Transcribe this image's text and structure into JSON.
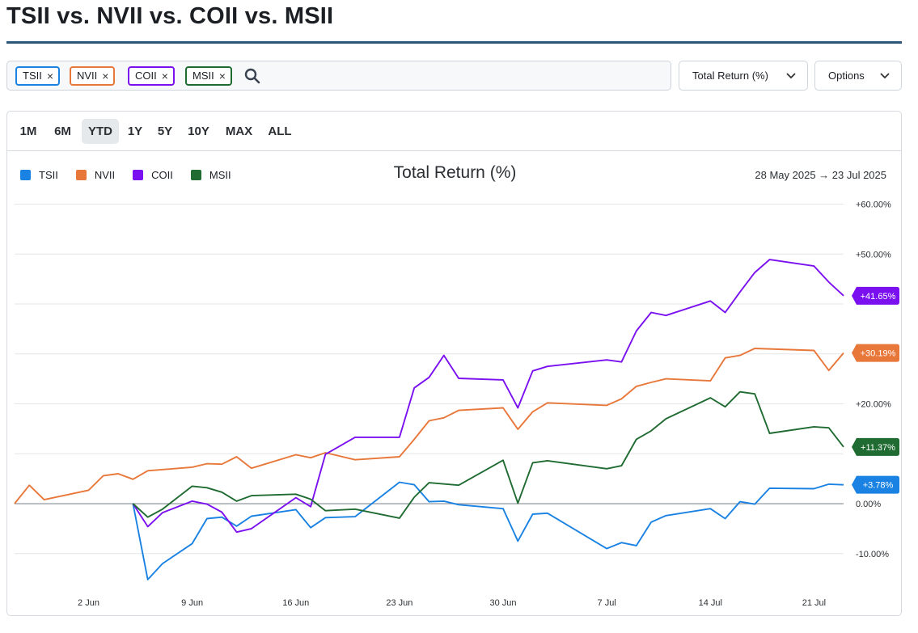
{
  "page": {
    "title": "TSII vs. NVII vs. COII vs. MSII"
  },
  "search": {
    "chips": [
      {
        "label": "TSII",
        "color": "#1a82e2"
      },
      {
        "label": "NVII",
        "color": "#e8773a"
      },
      {
        "label": "COII",
        "color": "#7a10ef"
      },
      {
        "label": "MSII",
        "color": "#1f6b32"
      }
    ],
    "remove_glyph": "×",
    "icon": "search-icon"
  },
  "controls": {
    "metric_label": "Total Return (%)",
    "options_label": "Options",
    "chevron_icon": "chevron-down-icon"
  },
  "ranges": {
    "items": [
      "1M",
      "6M",
      "YTD",
      "1Y",
      "5Y",
      "10Y",
      "MAX",
      "ALL"
    ],
    "selected": "YTD"
  },
  "chart_header": {
    "title": "Total Return (%)",
    "date_range": "28 May 2025  →  23 Jul 2025"
  },
  "chart_data": {
    "type": "line",
    "title": "Total Return (%)",
    "xlabel": "",
    "ylabel": "",
    "x_ticks": [
      {
        "label": "2 Jun",
        "date": "2025-06-02"
      },
      {
        "label": "9 Jun",
        "date": "2025-06-09"
      },
      {
        "label": "16 Jun",
        "date": "2025-06-16"
      },
      {
        "label": "23 Jun",
        "date": "2025-06-23"
      },
      {
        "label": "30 Jun",
        "date": "2025-06-30"
      },
      {
        "label": "7 Jul",
        "date": "2025-07-07"
      },
      {
        "label": "14 Jul",
        "date": "2025-07-14"
      },
      {
        "label": "21 Jul",
        "date": "2025-07-21"
      }
    ],
    "x_range": [
      "2025-05-28",
      "2025-07-23"
    ],
    "y_ticks": [
      {
        "value": 60,
        "label": "+60.00%"
      },
      {
        "value": 50,
        "label": "+50.00%"
      },
      {
        "value": 40,
        "label": ""
      },
      {
        "value": 30,
        "label": ""
      },
      {
        "value": 20,
        "label": "+20.00%"
      },
      {
        "value": 10,
        "label": ""
      },
      {
        "value": 0,
        "label": "0.00%"
      },
      {
        "value": -10,
        "label": "-10.00%"
      }
    ],
    "ylim": [
      -17,
      63
    ],
    "grid": true,
    "legend_position": "top-left",
    "series": [
      {
        "name": "TSII",
        "color": "#1a82e2",
        "end_label": "+3.78%",
        "points": [
          [
            "2025-06-05",
            0
          ],
          [
            "2025-06-06",
            -15.2
          ],
          [
            "2025-06-07",
            -12.0
          ],
          [
            "2025-06-09",
            -8.0
          ],
          [
            "2025-06-10",
            -3.0
          ],
          [
            "2025-06-11",
            -2.7
          ],
          [
            "2025-06-12",
            -4.5
          ],
          [
            "2025-06-13",
            -2.5
          ],
          [
            "2025-06-16",
            -1.2
          ],
          [
            "2025-06-17",
            -4.8
          ],
          [
            "2025-06-18",
            -2.8
          ],
          [
            "2025-06-20",
            -2.6
          ],
          [
            "2025-06-23",
            4.3
          ],
          [
            "2025-06-24",
            3.8
          ],
          [
            "2025-06-25",
            0.4
          ],
          [
            "2025-06-26",
            0.5
          ],
          [
            "2025-06-27",
            -0.2
          ],
          [
            "2025-06-30",
            -1.0
          ],
          [
            "2025-07-01",
            -7.5
          ],
          [
            "2025-07-02",
            -2.1
          ],
          [
            "2025-07-03",
            -1.9
          ],
          [
            "2025-07-07",
            -9.0
          ],
          [
            "2025-07-08",
            -7.8
          ],
          [
            "2025-07-09",
            -8.4
          ],
          [
            "2025-07-10",
            -3.7
          ],
          [
            "2025-07-11",
            -2.4
          ],
          [
            "2025-07-14",
            -1.0
          ],
          [
            "2025-07-15",
            -3.0
          ],
          [
            "2025-07-16",
            0.4
          ],
          [
            "2025-07-17",
            -0.1
          ],
          [
            "2025-07-18",
            3.1
          ],
          [
            "2025-07-21",
            3.0
          ],
          [
            "2025-07-22",
            3.9
          ],
          [
            "2025-07-23",
            3.78
          ]
        ]
      },
      {
        "name": "NVII",
        "color": "#e8773a",
        "end_label": "+30.19%",
        "points": [
          [
            "2025-05-28",
            0
          ],
          [
            "2025-05-29",
            3.7
          ],
          [
            "2025-05-30",
            0.8
          ],
          [
            "2025-06-02",
            2.7
          ],
          [
            "2025-06-03",
            5.6
          ],
          [
            "2025-06-04",
            6.0
          ],
          [
            "2025-06-05",
            4.9
          ],
          [
            "2025-06-06",
            6.6
          ],
          [
            "2025-06-09",
            7.3
          ],
          [
            "2025-06-10",
            8.0
          ],
          [
            "2025-06-11",
            7.9
          ],
          [
            "2025-06-12",
            9.4
          ],
          [
            "2025-06-13",
            7.1
          ],
          [
            "2025-06-16",
            9.8
          ],
          [
            "2025-06-17",
            9.2
          ],
          [
            "2025-06-18",
            10.2
          ],
          [
            "2025-06-20",
            8.8
          ],
          [
            "2025-06-23",
            9.4
          ],
          [
            "2025-06-24",
            12.9
          ],
          [
            "2025-06-25",
            16.6
          ],
          [
            "2025-06-26",
            17.2
          ],
          [
            "2025-06-27",
            18.7
          ],
          [
            "2025-06-30",
            19.2
          ],
          [
            "2025-07-01",
            14.9
          ],
          [
            "2025-07-02",
            18.4
          ],
          [
            "2025-07-03",
            20.2
          ],
          [
            "2025-07-07",
            19.7
          ],
          [
            "2025-07-08",
            21.0
          ],
          [
            "2025-07-09",
            23.5
          ],
          [
            "2025-07-10",
            24.3
          ],
          [
            "2025-07-11",
            25.0
          ],
          [
            "2025-07-14",
            24.6
          ],
          [
            "2025-07-15",
            29.2
          ],
          [
            "2025-07-16",
            29.7
          ],
          [
            "2025-07-17",
            31.1
          ],
          [
            "2025-07-21",
            30.7
          ],
          [
            "2025-07-22",
            26.7
          ],
          [
            "2025-07-23",
            30.19
          ]
        ]
      },
      {
        "name": "COII",
        "color": "#7a10ef",
        "end_label": "+41.65%",
        "points": [
          [
            "2025-06-05",
            0
          ],
          [
            "2025-06-06",
            -4.6
          ],
          [
            "2025-06-07",
            -1.8
          ],
          [
            "2025-06-09",
            0.5
          ],
          [
            "2025-06-10",
            -0.1
          ],
          [
            "2025-06-11",
            -1.7
          ],
          [
            "2025-06-12",
            -5.7
          ],
          [
            "2025-06-13",
            -5.0
          ],
          [
            "2025-06-16",
            1.2
          ],
          [
            "2025-06-17",
            -0.6
          ],
          [
            "2025-06-18",
            9.9
          ],
          [
            "2025-06-20",
            13.3
          ],
          [
            "2025-06-23",
            13.3
          ],
          [
            "2025-06-24",
            23.2
          ],
          [
            "2025-06-25",
            25.3
          ],
          [
            "2025-06-26",
            29.7
          ],
          [
            "2025-06-27",
            25.1
          ],
          [
            "2025-06-30",
            24.8
          ],
          [
            "2025-07-01",
            19.2
          ],
          [
            "2025-07-02",
            26.6
          ],
          [
            "2025-07-03",
            27.5
          ],
          [
            "2025-07-07",
            28.8
          ],
          [
            "2025-07-08",
            28.4
          ],
          [
            "2025-07-09",
            34.6
          ],
          [
            "2025-07-10",
            38.3
          ],
          [
            "2025-07-11",
            37.7
          ],
          [
            "2025-07-14",
            40.6
          ],
          [
            "2025-07-15",
            38.3
          ],
          [
            "2025-07-16",
            42.4
          ],
          [
            "2025-07-17",
            46.3
          ],
          [
            "2025-07-18",
            48.9
          ],
          [
            "2025-07-21",
            47.6
          ],
          [
            "2025-07-22",
            44.4
          ],
          [
            "2025-07-23",
            41.65
          ]
        ]
      },
      {
        "name": "MSII",
        "color": "#1f6b32",
        "end_label": "+11.37%",
        "points": [
          [
            "2025-06-05",
            0
          ],
          [
            "2025-06-06",
            -2.7
          ],
          [
            "2025-06-07",
            -1.1
          ],
          [
            "2025-06-09",
            3.5
          ],
          [
            "2025-06-10",
            3.2
          ],
          [
            "2025-06-11",
            2.3
          ],
          [
            "2025-06-12",
            0.5
          ],
          [
            "2025-06-13",
            1.6
          ],
          [
            "2025-06-16",
            1.9
          ],
          [
            "2025-06-17",
            0.9
          ],
          [
            "2025-06-18",
            -1.4
          ],
          [
            "2025-06-20",
            -1.1
          ],
          [
            "2025-06-23",
            -2.9
          ],
          [
            "2025-06-24",
            1.3
          ],
          [
            "2025-06-25",
            4.2
          ],
          [
            "2025-06-27",
            3.7
          ],
          [
            "2025-06-30",
            8.7
          ],
          [
            "2025-07-01",
            0.1
          ],
          [
            "2025-07-02",
            8.2
          ],
          [
            "2025-07-03",
            8.6
          ],
          [
            "2025-07-07",
            7.0
          ],
          [
            "2025-07-08",
            7.6
          ],
          [
            "2025-07-09",
            12.9
          ],
          [
            "2025-07-10",
            14.6
          ],
          [
            "2025-07-11",
            17.0
          ],
          [
            "2025-07-14",
            21.2
          ],
          [
            "2025-07-15",
            19.4
          ],
          [
            "2025-07-16",
            22.4
          ],
          [
            "2025-07-17",
            22.0
          ],
          [
            "2025-07-18",
            14.1
          ],
          [
            "2025-07-21",
            15.4
          ],
          [
            "2025-07-22",
            15.2
          ],
          [
            "2025-07-23",
            11.37
          ]
        ]
      }
    ]
  }
}
